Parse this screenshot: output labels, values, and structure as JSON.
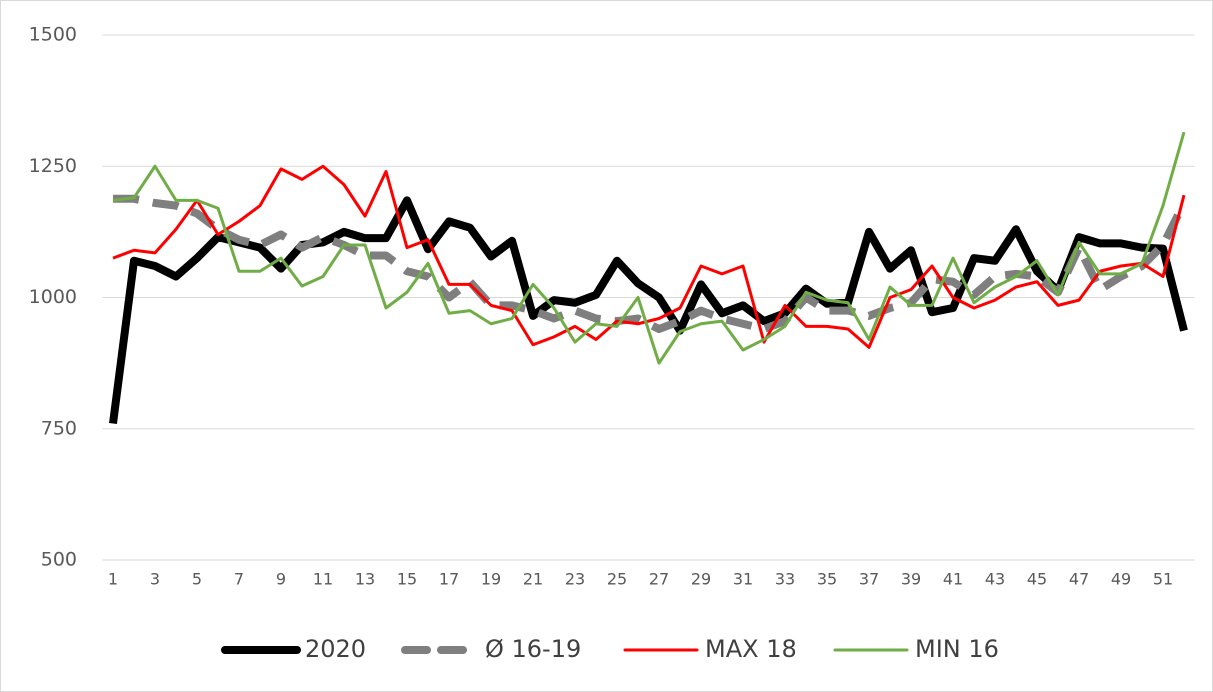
{
  "chart_data": {
    "type": "line",
    "categories": [
      "1",
      null,
      "3",
      null,
      "5",
      null,
      "7",
      null,
      "9",
      null,
      "11",
      null,
      "13",
      null,
      "15",
      null,
      "17",
      null,
      "19",
      null,
      "21",
      null,
      "23",
      null,
      "25",
      null,
      "27",
      null,
      "29",
      null,
      "31",
      null,
      "33",
      null,
      "35",
      null,
      "37",
      null,
      "39",
      null,
      "41",
      null,
      "43",
      null,
      "45",
      null,
      "47",
      null,
      "49",
      null,
      "51",
      null
    ],
    "series": [
      {
        "name": "2020",
        "color": "#000000",
        "values": [
          760,
          1070,
          1060,
          1040,
          1075,
          1115,
          1105,
          1095,
          1055,
          1100,
          1105,
          1125,
          1113,
          1113,
          1185,
          1092,
          1145,
          1133,
          1078,
          1108,
          965,
          995,
          990,
          1005,
          1070,
          1027,
          1000,
          937,
          1025,
          970,
          985,
          955,
          970,
          1017,
          988,
          990,
          1125,
          1055,
          1090,
          972,
          980,
          1075,
          1070,
          1130,
          1050,
          1013,
          1115,
          1103,
          1103,
          1095,
          1093,
          937
        ]
      },
      {
        "name": "Ø 16-19",
        "color": "#7f7f7f",
        "line_style": "dashed",
        "values": [
          1188,
          1188,
          1180,
          1175,
          1160,
          1130,
          1110,
          1100,
          1120,
          1095,
          1115,
          1100,
          1080,
          1080,
          1050,
          1040,
          1000,
          1030,
          985,
          985,
          975,
          960,
          975,
          960,
          955,
          960,
          940,
          955,
          975,
          960,
          950,
          940,
          955,
          1000,
          975,
          975,
          965,
          980,
          990,
          1035,
          1030,
          1005,
          1040,
          1045,
          1040,
          1010,
          1095,
          1015,
          1040,
          1060,
          1100,
          1180
        ]
      },
      {
        "name": "MAX 18",
        "color": "#ff0000",
        "values": [
          1075,
          1090,
          1085,
          1130,
          1185,
          1120,
          1145,
          1175,
          1245,
          1225,
          1250,
          1215,
          1155,
          1240,
          1095,
          1110,
          1025,
          1025,
          985,
          975,
          910,
          925,
          945,
          920,
          955,
          950,
          960,
          980,
          1060,
          1045,
          1060,
          915,
          985,
          945,
          945,
          940,
          905,
          1000,
          1015,
          1060,
          1000,
          980,
          995,
          1020,
          1030,
          985,
          995,
          1050,
          1060,
          1065,
          1040,
          1195
        ]
      },
      {
        "name": "MIN 16",
        "color": "#70ad47",
        "values": [
          1185,
          1190,
          1250,
          1185,
          1185,
          1170,
          1050,
          1050,
          1075,
          1022,
          1040,
          1100,
          1100,
          980,
          1010,
          1065,
          970,
          975,
          950,
          960,
          1025,
          980,
          915,
          950,
          945,
          1000,
          875,
          935,
          950,
          955,
          900,
          920,
          945,
          1010,
          995,
          990,
          920,
          1020,
          985,
          985,
          1075,
          990,
          1020,
          1040,
          1070,
          1005,
          1105,
          1045,
          1045,
          1065,
          1175,
          1315
        ]
      }
    ],
    "ylim": [
      500,
      1500
    ],
    "yticks": [
      500,
      750,
      1000,
      1250,
      1500
    ],
    "grid": true,
    "legend": "bottom"
  }
}
